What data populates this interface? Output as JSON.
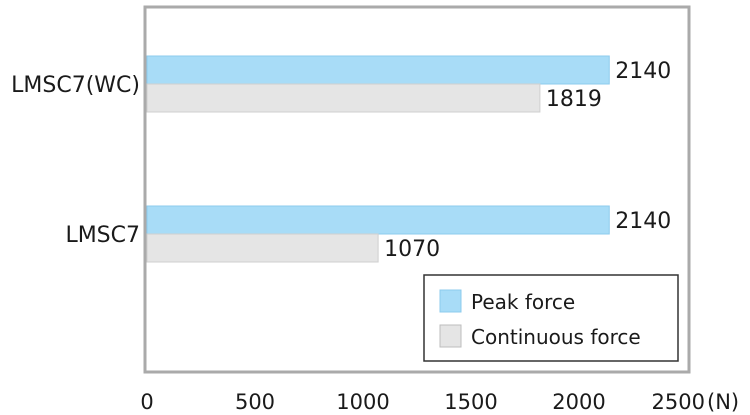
{
  "chart_data": {
    "type": "bar",
    "orientation": "horizontal",
    "categories": [
      "LMSC7(WC)",
      "LMSC7"
    ],
    "series": [
      {
        "name": "Peak force",
        "values": [
          2140,
          2140
        ],
        "color": "#a8dcf7"
      },
      {
        "name": "Continuous force",
        "values": [
          1819,
          1070
        ],
        "color": "#e5e5e5"
      }
    ],
    "x_ticks": [
      "0",
      "500",
      "1000",
      "1500",
      "2000",
      "2500"
    ],
    "x_unit": "(N)",
    "xlim": [
      0,
      2500
    ],
    "grid": false,
    "legend_position": "bottom-right",
    "frame_color": "#aaaaaa"
  }
}
